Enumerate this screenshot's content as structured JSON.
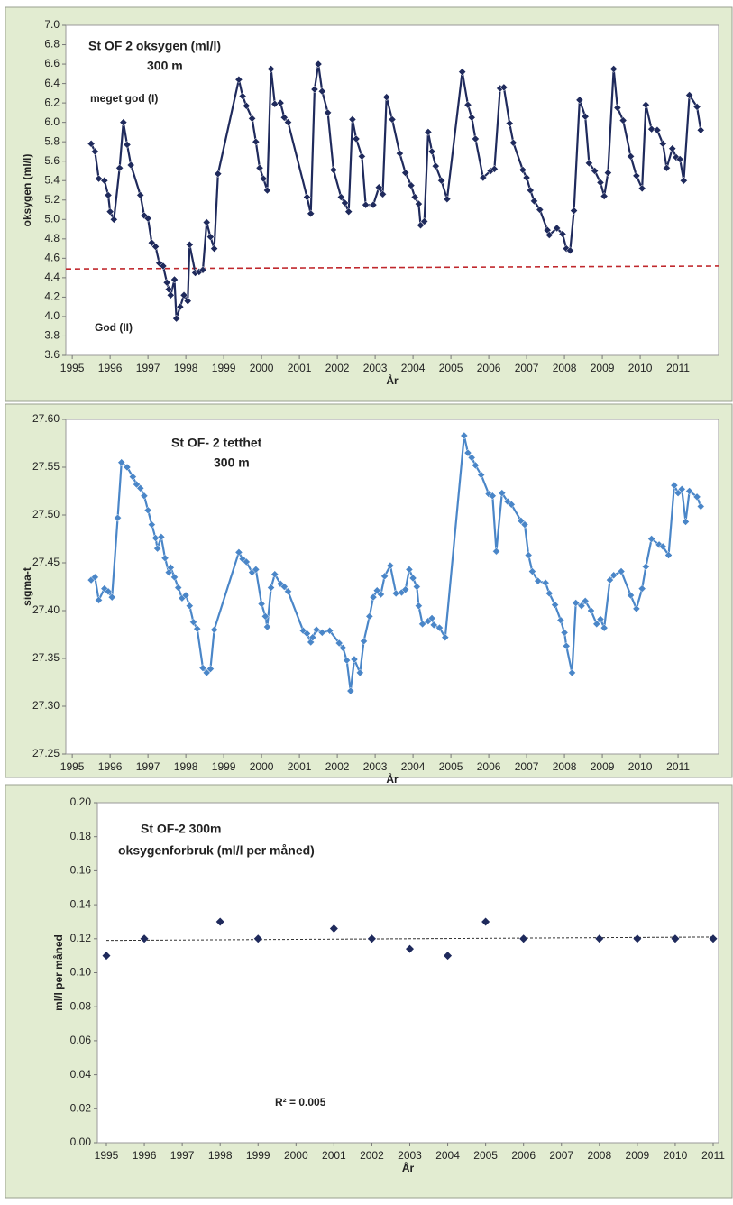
{
  "chart_data": [
    {
      "type": "line",
      "title": "St OF 2 oksygen (ml/l)",
      "subtitle": "300 m",
      "y_label": "oksygen (ml/l)",
      "x_label": "År",
      "color": "#1f2a5c",
      "xlim": [
        1994.83,
        2012.07
      ],
      "xticks": [
        1995,
        1996,
        1997,
        1998,
        1999,
        2000,
        2001,
        2002,
        2003,
        2004,
        2005,
        2006,
        2007,
        2008,
        2009,
        2010,
        2011
      ],
      "ylim": [
        3.6,
        7.0
      ],
      "yticks": [
        3.6,
        3.8,
        {
          "value": 4,
          "label": "4.0"
        },
        4.2,
        4.4,
        4.6,
        4.8,
        {
          "value": 5,
          "label": "5.0"
        },
        5.2,
        5.4,
        5.6,
        5.8,
        {
          "value": 6,
          "label": "6.0"
        },
        6.2,
        6.4,
        6.6,
        6.8,
        {
          "value": 7,
          "label": "7.0"
        }
      ],
      "reference_line": {
        "values": [
          4.49,
          4.52
        ],
        "color": "#c0282d"
      },
      "annotations": [
        "meget god (I)",
        "God (II)"
      ],
      "annotation_color": "#c0282d",
      "x": [
        1995.5,
        1995.6,
        1995.7,
        1995.85,
        1995.95,
        1996.0,
        1996.1,
        1996.25,
        1996.35,
        1996.45,
        1996.55,
        1996.8,
        1996.9,
        1997.0,
        1997.1,
        1997.2,
        1997.3,
        1997.4,
        1997.5,
        1997.55,
        1997.6,
        1997.7,
        1997.75,
        1997.85,
        1997.95,
        1998.05,
        1998.1,
        1998.25,
        1998.35,
        1998.45,
        1998.55,
        1998.65,
        1998.75,
        1998.85,
        1999.4,
        1999.5,
        1999.6,
        1999.75,
        1999.85,
        1999.95,
        2000.05,
        2000.15,
        2000.25,
        2000.35,
        2000.5,
        2000.6,
        2000.7,
        2001.2,
        2001.3,
        2001.4,
        2001.5,
        2001.6,
        2001.75,
        2001.9,
        2002.1,
        2002.2,
        2002.3,
        2002.4,
        2002.5,
        2002.65,
        2002.75,
        2002.95,
        2003.1,
        2003.2,
        2003.3,
        2003.45,
        2003.65,
        2003.8,
        2003.95,
        2004.05,
        2004.15,
        2004.2,
        2004.3,
        2004.4,
        2004.5,
        2004.6,
        2004.75,
        2004.9,
        2005.3,
        2005.45,
        2005.55,
        2005.65,
        2005.85,
        2006.05,
        2006.15,
        2006.3,
        2006.4,
        2006.55,
        2006.65,
        2006.9,
        2007.0,
        2007.1,
        2007.2,
        2007.35,
        2007.55,
        2007.6,
        2007.8,
        2007.95,
        2008.05,
        2008.15,
        2008.25,
        2008.4,
        2008.55,
        2008.65,
        2008.8,
        2008.95,
        2009.05,
        2009.15,
        2009.3,
        2009.4,
        2009.55,
        2009.75,
        2009.9,
        2010.05,
        2010.15,
        2010.3,
        2010.45,
        2010.6,
        2010.7,
        2010.85,
        2010.95,
        2011.05,
        2011.15,
        2011.3,
        2011.5,
        2011.6
      ],
      "values": [
        5.78,
        5.7,
        5.42,
        5.4,
        5.25,
        5.08,
        5.0,
        5.53,
        6.0,
        5.77,
        5.56,
        5.25,
        5.04,
        5.01,
        4.76,
        4.72,
        4.55,
        4.52,
        4.35,
        4.28,
        4.22,
        4.38,
        3.98,
        4.1,
        4.22,
        4.16,
        4.74,
        4.45,
        4.46,
        4.48,
        4.97,
        4.82,
        4.7,
        5.47,
        6.44,
        6.27,
        6.17,
        6.04,
        5.8,
        5.53,
        5.42,
        5.3,
        6.55,
        6.19,
        6.2,
        6.05,
        6.0,
        5.23,
        5.06,
        6.34,
        6.6,
        6.32,
        6.1,
        5.51,
        5.23,
        5.17,
        5.08,
        6.03,
        5.83,
        5.65,
        5.15,
        5.15,
        5.33,
        5.26,
        6.26,
        6.03,
        5.68,
        5.48,
        5.35,
        5.23,
        5.16,
        4.94,
        4.98,
        5.9,
        5.7,
        5.55,
        5.4,
        5.21,
        6.52,
        6.18,
        6.05,
        5.83,
        5.43,
        5.5,
        5.52,
        6.35,
        6.36,
        5.99,
        5.79,
        5.51,
        5.43,
        5.3,
        5.19,
        5.1,
        4.89,
        4.84,
        4.91,
        4.85,
        4.7,
        4.68,
        5.09,
        6.23,
        6.06,
        5.58,
        5.5,
        5.38,
        5.24,
        5.48,
        6.55,
        6.15,
        6.02,
        5.65,
        5.45,
        5.32,
        6.18,
        5.93,
        5.92,
        5.78,
        5.53,
        5.73,
        5.64,
        5.62,
        5.4,
        6.28,
        6.16,
        5.92
      ]
    },
    {
      "type": "line",
      "title": "St OF- 2  tetthet",
      "subtitle": "300 m",
      "y_label": "sigma-t",
      "x_label": "År",
      "color": "#4a86c8",
      "xlim": [
        1994.83,
        2012.07
      ],
      "xticks": [
        1995,
        1996,
        1997,
        1998,
        1999,
        2000,
        2001,
        2002,
        2003,
        2004,
        2005,
        2006,
        2007,
        2008,
        2009,
        2010,
        2011
      ],
      "ylim": [
        27.25,
        27.6
      ],
      "yticks": [
        27.25,
        {
          "value": 27.3,
          "label": "27.30"
        },
        27.35,
        {
          "value": 27.4,
          "label": "27.40"
        },
        27.45,
        {
          "value": 27.5,
          "label": "27.50"
        },
        27.55,
        {
          "value": 27.6,
          "label": "27.60"
        }
      ],
      "x": [
        1995.5,
        1995.6,
        1995.7,
        1995.85,
        1995.95,
        1996.05,
        1996.2,
        1996.3,
        1996.45,
        1996.6,
        1996.7,
        1996.8,
        1996.9,
        1997.0,
        1997.1,
        1997.2,
        1997.25,
        1997.35,
        1997.45,
        1997.55,
        1997.6,
        1997.7,
        1997.8,
        1997.9,
        1998.0,
        1998.1,
        1998.2,
        1998.3,
        1998.45,
        1998.55,
        1998.65,
        1998.75,
        1999.4,
        1999.5,
        1999.6,
        1999.75,
        1999.85,
        2000.0,
        2000.1,
        2000.15,
        2000.25,
        2000.35,
        2000.5,
        2000.6,
        2000.7,
        2001.1,
        2001.2,
        2001.3,
        2001.35,
        2001.45,
        2001.6,
        2001.8,
        2002.05,
        2002.15,
        2002.25,
        2002.35,
        2002.45,
        2002.6,
        2002.7,
        2002.85,
        2002.95,
        2003.05,
        2003.15,
        2003.25,
        2003.4,
        2003.55,
        2003.7,
        2003.8,
        2003.9,
        2004.0,
        2004.1,
        2004.15,
        2004.25,
        2004.4,
        2004.5,
        2004.55,
        2004.7,
        2004.85,
        2005.35,
        2005.45,
        2005.55,
        2005.65,
        2005.8,
        2006.0,
        2006.1,
        2006.2,
        2006.35,
        2006.5,
        2006.6,
        2006.85,
        2006.95,
        2007.05,
        2007.15,
        2007.3,
        2007.5,
        2007.6,
        2007.75,
        2007.9,
        2008.0,
        2008.05,
        2008.2,
        2008.3,
        2008.45,
        2008.55,
        2008.7,
        2008.85,
        2008.95,
        2009.05,
        2009.2,
        2009.3,
        2009.5,
        2009.75,
        2009.9,
        2010.05,
        2010.15,
        2010.3,
        2010.5,
        2010.6,
        2010.75,
        2010.9,
        2011.0,
        2011.1,
        2011.2,
        2011.3,
        2011.5,
        2011.6
      ],
      "values": [
        27.432,
        27.435,
        27.411,
        27.423,
        27.42,
        27.414,
        27.497,
        27.555,
        27.55,
        27.54,
        27.532,
        27.528,
        27.52,
        27.505,
        27.49,
        27.476,
        27.465,
        27.477,
        27.455,
        27.44,
        27.445,
        27.435,
        27.424,
        27.413,
        27.416,
        27.405,
        27.388,
        27.381,
        27.34,
        27.335,
        27.339,
        27.38,
        27.461,
        27.454,
        27.451,
        27.44,
        27.443,
        27.407,
        27.394,
        27.383,
        27.424,
        27.438,
        27.428,
        27.425,
        27.42,
        27.379,
        27.376,
        27.367,
        27.372,
        27.38,
        27.377,
        27.379,
        27.366,
        27.361,
        27.348,
        27.316,
        27.349,
        27.335,
        27.368,
        27.394,
        27.414,
        27.421,
        27.417,
        27.436,
        27.447,
        27.418,
        27.419,
        27.422,
        27.443,
        27.434,
        27.425,
        27.405,
        27.386,
        27.389,
        27.392,
        27.385,
        27.382,
        27.372,
        27.583,
        27.565,
        27.56,
        27.552,
        27.542,
        27.522,
        27.52,
        27.462,
        27.523,
        27.514,
        27.511,
        27.494,
        27.49,
        27.458,
        27.441,
        27.431,
        27.429,
        27.418,
        27.406,
        27.39,
        27.377,
        27.363,
        27.335,
        27.408,
        27.405,
        27.41,
        27.4,
        27.386,
        27.391,
        27.382,
        27.432,
        27.437,
        27.441,
        27.416,
        27.402,
        27.423,
        27.446,
        27.475,
        27.469,
        27.467,
        27.458,
        27.531,
        27.523,
        27.527,
        27.493,
        27.525,
        27.519,
        27.509
      ]
    },
    {
      "type": "scatter",
      "title": "St OF-2 300m",
      "subtitle": "oksygenforbruk (ml/l per måned)",
      "y_label": "ml/l per måned",
      "x_label": "År",
      "color": "#1f2a5c",
      "xlim": [
        1995,
        2011
      ],
      "xticks": [
        1995,
        1996,
        1997,
        1998,
        1999,
        2000,
        2001,
        2002,
        2003,
        2004,
        2005,
        2006,
        2007,
        2008,
        2009,
        2010,
        2011
      ],
      "ylim": [
        0,
        0.2
      ],
      "yticks": [
        {
          "value": 0,
          "label": "0.00"
        },
        {
          "value": 0.02,
          "label": "0.02"
        },
        {
          "value": 0.04,
          "label": "0.04"
        },
        {
          "value": 0.06,
          "label": "0.06"
        },
        {
          "value": 0.08,
          "label": "0.08"
        },
        {
          "value": 0.1,
          "label": "0.10"
        },
        {
          "value": 0.12,
          "label": "0.12"
        },
        {
          "value": 0.14,
          "label": "0.14"
        },
        {
          "value": 0.16,
          "label": "0.16"
        },
        {
          "value": 0.18,
          "label": "0.18"
        },
        {
          "value": 0.2,
          "label": "0.20"
        }
      ],
      "trendline": {
        "values": [
          0.119,
          0.121
        ],
        "color": "#333333"
      },
      "annotations": [
        "R² = 0.005"
      ],
      "annotation_color": "#222222",
      "x": [
        1995,
        1996,
        1998,
        1999,
        2001,
        2002,
        2003,
        2004,
        2005,
        2006,
        2008,
        2009,
        2010,
        2011
      ],
      "values": [
        0.11,
        0.12,
        0.13,
        0.12,
        0.126,
        0.12,
        0.114,
        0.11,
        0.13,
        0.12,
        0.12,
        0.12,
        0.12,
        0.12
      ]
    }
  ]
}
